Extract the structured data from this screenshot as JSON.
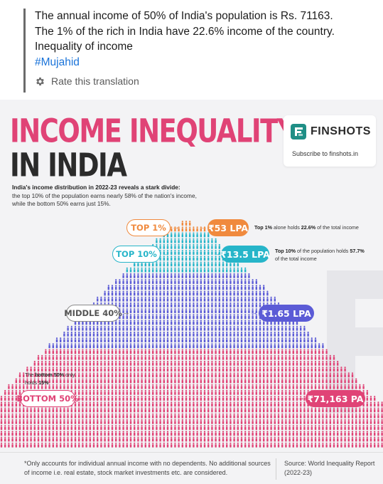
{
  "post": {
    "lines": [
      "The annual income of 50% of India's population is Rs. 71163.",
      "The 1% of the rich in India have 22.6% income of the country.",
      "Inequality of income"
    ],
    "hashtag": "#Mujahid",
    "rate_label": "Rate this translation"
  },
  "infographic": {
    "title_line1": "INCOME INEQUALITY",
    "title_line2": "IN INDIA",
    "lead_bold": "India's income distribution in 2022-23 reveals a stark divide:",
    "lead_rest": "the top 10% of the population earns nearly 58% of the nation's income, while the bottom 50% earns just 15%.",
    "brand": {
      "name": "FINSHOTS",
      "subtitle": "Subscribe to finshots.in"
    },
    "groups": {
      "top1": {
        "label": "TOP 1%",
        "value": "₹53 LPA",
        "color": "#f08a3e"
      },
      "top10": {
        "label": "TOP 10%",
        "value": "₹13.5 LPA",
        "color": "#27b5c9"
      },
      "middle40": {
        "label": "MIDDLE 40%",
        "value": "₹1.65 LPA",
        "color": "#5b5bd6"
      },
      "bottom50": {
        "label": "BOTTOM 50%",
        "value": "₹71,163 PA",
        "color": "#e04376"
      }
    },
    "notes": {
      "top1": {
        "pre": "Top 1%",
        "mid": " alone holds ",
        "bold": "22.6%",
        "post": " of the total income"
      },
      "top10": {
        "pre": "Top 10%",
        "mid": " of the population holds ",
        "bold": "57.7%",
        "post": " of the total income"
      },
      "bottom50": {
        "pre": "The ",
        "bold1": "bottom 50%",
        "mid": " only holds ",
        "bold2": "15%"
      }
    },
    "footnote": "*Only accounts for individual annual income with no dependents. No additional sources of income i.e. real estate, stock market investments etc. are considered.",
    "source": "Source: World Inequality Report (2022-23)"
  }
}
